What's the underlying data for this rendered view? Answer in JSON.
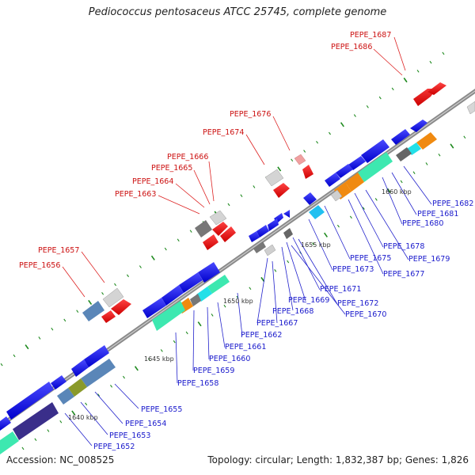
{
  "title": "Pediococcus pentosaceus ATCC 25745, complete genome",
  "footer": {
    "accession": "Accession: NC_008525",
    "topology": "Topology: circular; Length: 1,832,387 bp; Genes: 1,826"
  },
  "kbp_labels": [
    "1640 kbp",
    "1645 kbp",
    "1650 kbp",
    "1655 kbp",
    "1660 kbp"
  ],
  "top_labels": [
    "PEPE_1687",
    "PEPE_1686",
    "PEPE_1676",
    "PEPE_1674",
    "PEPE_1666",
    "PEPE_1665",
    "PEPE_1664",
    "PEPE_1663",
    "PEPE_1657",
    "PEPE_1656"
  ],
  "bottom_labels": [
    "PEPE_1682",
    "PEPE_1681",
    "PEPE_1680",
    "PEPE_1678",
    "PEPE_1679",
    "PEPE_1675",
    "PEPE_1677",
    "PEPE_1673",
    "PEPE_1671",
    "PEPE_1672",
    "PEPE_1669",
    "PEPE_1670",
    "PEPE_1668",
    "PEPE_1667",
    "PEPE_1662",
    "PEPE_1661",
    "PEPE_1660",
    "PEPE_1659",
    "PEPE_1658",
    "PEPE_1655",
    "PEPE_1654",
    "PEPE_1653",
    "PEPE_1652"
  ],
  "colors": {
    "forward_cds": "#1010e8",
    "reverse_cds": "#e01010",
    "label_forward": "#1a1acc",
    "label_reverse": "#cc1111",
    "backbone": "#8a8a8a",
    "tick": "#1f8a1f"
  }
}
